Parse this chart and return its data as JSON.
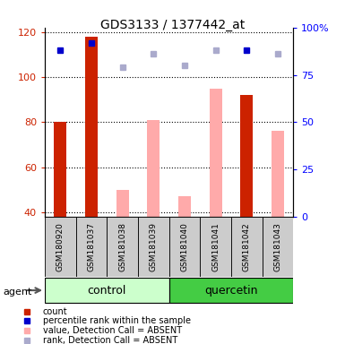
{
  "title": "GDS3133 / 1377442_at",
  "samples": [
    "GSM180920",
    "GSM181037",
    "GSM181038",
    "GSM181039",
    "GSM181040",
    "GSM181041",
    "GSM181042",
    "GSM181043"
  ],
  "ylim_left": [
    38,
    122
  ],
  "ylim_right": [
    0,
    100
  ],
  "yticks_left": [
    40,
    60,
    80,
    100,
    120
  ],
  "ytick_labels_right": [
    "0",
    "25",
    "50",
    "75",
    "100%"
  ],
  "count_values": [
    80,
    118,
    null,
    null,
    null,
    null,
    92,
    null
  ],
  "percentile_values": [
    88,
    92,
    null,
    null,
    null,
    null,
    88,
    null
  ],
  "absent_value_bars": [
    null,
    null,
    50,
    81,
    47,
    95,
    null,
    76
  ],
  "absent_rank_markers": [
    null,
    null,
    79,
    86,
    80,
    88,
    null,
    86
  ],
  "color_count": "#cc2200",
  "color_percentile": "#0000cc",
  "color_absent_value": "#ffaaaa",
  "color_absent_rank": "#aaaacc",
  "control_bg": "#ccffcc",
  "quercetin_bg": "#44cc44",
  "sample_bg": "#cccccc",
  "group_control_label": "control",
  "group_quercetin_label": "quercetin",
  "agent_label": "agent",
  "legend_labels": [
    "count",
    "percentile rank within the sample",
    "value, Detection Call = ABSENT",
    "rank, Detection Call = ABSENT"
  ],
  "legend_colors": [
    "#cc2200",
    "#0000cc",
    "#ffaaaa",
    "#aaaacc"
  ]
}
